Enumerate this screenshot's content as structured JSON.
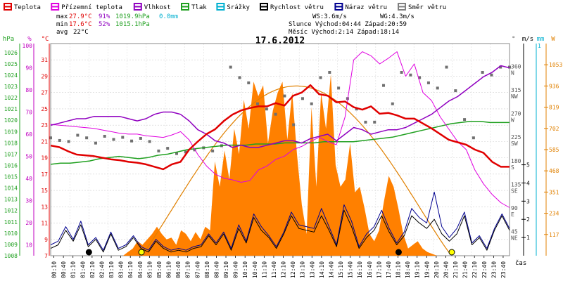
{
  "chart_data": {
    "type": "line",
    "title": "17.6.2012",
    "legend": [
      {
        "key": "temp",
        "label": "Teplota",
        "color": "#e00000"
      },
      {
        "key": "feels",
        "label": "Přízemní teplota",
        "color": "#e000e0"
      },
      {
        "key": "humidity",
        "label": "Vlhkost",
        "color": "#9000c0"
      },
      {
        "key": "pressure",
        "label": "Tlak",
        "color": "#20a020"
      },
      {
        "key": "rain",
        "label": "Srážky",
        "color": "#00b0d0"
      },
      {
        "key": "wind",
        "label": "Rychlost větru",
        "color": "#000000"
      },
      {
        "key": "gust",
        "label": "Náraz větru",
        "color": "#000090"
      },
      {
        "key": "dir",
        "label": "Směr větru",
        "color": "#808080"
      }
    ],
    "stats": {
      "max": {
        "label": "max",
        "temp": "27.9°C",
        "hum": "91%",
        "press": "1019.9hPa",
        "rain": "0.0mm"
      },
      "min": {
        "label": "min",
        "temp": "17.6°C",
        "hum": "52%",
        "press": "1015.1hPa"
      },
      "avg": {
        "label": "avg",
        "temp": "22°C"
      },
      "ws": "WS:3.6m/s",
      "wg": "WG:4.3m/s",
      "sun": "Slunce Východ:04:44  Západ:20:59",
      "moon": "Měsíc  Východ:2:14  Západ:18:14"
    },
    "axes": {
      "hpa": {
        "label": "hPa",
        "ticks": [
          "1026",
          "1025",
          "1024",
          "1023",
          "1022",
          "1021",
          "1020",
          "1019",
          "1018",
          "1017",
          "1016",
          "1015",
          "1014",
          "1013",
          "1012",
          "1011",
          "1010",
          "1009",
          "1008"
        ],
        "color": "#20a020"
      },
      "pct": {
        "label": "%",
        "ticks": [
          "100",
          "90",
          "80",
          "70",
          "60",
          "50",
          "40",
          "30",
          "20",
          "10"
        ],
        "color": "#c000c0"
      },
      "temp": {
        "label": "°C",
        "ticks": [
          "31",
          "29",
          "27",
          "25",
          "23",
          "21",
          "19",
          "17",
          "15",
          "13",
          "11",
          "9",
          "7"
        ],
        "range": [
          7,
          33
        ],
        "color": "#e00000"
      },
      "dir": {
        "label": "°",
        "ticks": [
          {
            "deg": "360",
            "dir": "N"
          },
          {
            "deg": "315",
            "dir": "NW"
          },
          {
            "deg": "270",
            "dir": "W"
          },
          {
            "deg": "225",
            "dir": "SW"
          },
          {
            "deg": "180",
            "dir": "S"
          },
          {
            "deg": "135",
            "dir": "SE"
          },
          {
            "deg": "90",
            "dir": "E"
          },
          {
            "deg": "45",
            "dir": "NE"
          }
        ],
        "color": "#505050"
      },
      "ms": {
        "label": "m/s",
        "ticks": [
          "5",
          "4",
          "3",
          "2",
          "1"
        ],
        "color": "#000000"
      },
      "mm": {
        "label": "mm",
        "ticks": [
          "1"
        ],
        "color": "#00b0d0"
      },
      "w": {
        "label": "W",
        "ticks": [
          "1053",
          "936",
          "819",
          "702",
          "585",
          "468",
          "351",
          "234",
          "117"
        ],
        "color": "#e08000"
      },
      "x_label": "čas",
      "x_ticks": [
        "00:10",
        "00:40",
        "01:10",
        "01:40",
        "02:10",
        "02:40",
        "03:10",
        "03:40",
        "04:10",
        "04:40",
        "05:10",
        "05:40",
        "06:10",
        "06:40",
        "07:10",
        "07:40",
        "08:10",
        "08:40",
        "09:10",
        "09:40",
        "10:10",
        "10:40",
        "11:10",
        "11:40",
        "12:10",
        "12:40",
        "13:10",
        "13:40",
        "14:10",
        "14:40",
        "15:10",
        "15:40",
        "16:10",
        "16:40",
        "17:10",
        "17:40",
        "18:10",
        "18:40",
        "19:10",
        "19:40",
        "20:10",
        "20:40",
        "21:10",
        "21:40",
        "22:10",
        "22:40",
        "23:10",
        "23:40"
      ]
    },
    "x_hours": [
      0,
      0.5,
      1,
      1.5,
      2,
      2.5,
      3,
      3.5,
      4,
      4.5,
      5,
      5.5,
      6,
      6.5,
      7,
      7.5,
      8,
      8.5,
      9,
      9.5,
      10,
      10.5,
      11,
      11.5,
      12,
      12.5,
      13,
      13.5,
      14,
      14.5,
      15,
      15.5,
      16,
      16.5,
      17,
      17.5,
      18,
      18.5,
      19,
      19.5,
      20,
      20.5,
      21,
      21.5,
      22,
      22.5,
      23,
      23.5,
      24
    ],
    "series": {
      "temp": [
        20.5,
        20.3,
        19.8,
        19.4,
        19.3,
        19.2,
        19.0,
        18.8,
        18.7,
        18.5,
        18.4,
        18.2,
        17.9,
        17.6,
        18.2,
        18.5,
        20.0,
        21.0,
        21.9,
        22.5,
        23.5,
        24.3,
        24.8,
        25.1,
        25.3,
        25.3,
        25.7,
        25.4,
        26.6,
        27.0,
        27.9,
        26.8,
        26.6,
        25.8,
        25.9,
        25.2,
        24.9,
        25.3,
        24.4,
        24.5,
        24.2,
        23.8,
        23.8,
        23.2,
        22.6,
        21.9,
        21.2,
        20.9,
        20.6,
        20.0,
        19.6,
        18.5,
        17.9,
        17.9
      ],
      "feels": [
        23.1,
        23.0,
        22.9,
        22.8,
        22.7,
        22.6,
        22.4,
        22.2,
        22.0,
        21.9,
        21.9,
        21.7,
        21.6,
        21.5,
        21.8,
        22.2,
        21.2,
        19.4,
        18.0,
        17.0,
        16.5,
        16.3,
        16.0,
        16.2,
        17.5,
        18.0,
        18.8,
        19.2,
        20.0,
        20.4,
        21.0,
        21.5,
        21.0,
        20.6,
        24.0,
        31.0,
        32.0,
        31.5,
        30.5,
        31.2,
        32.0,
        29.0,
        30.5,
        27.0,
        26.0,
        24.0,
        22.5,
        21.0,
        20.0,
        17.5,
        15.8,
        14.5,
        13.5,
        12.9
      ],
      "humidity": [
        64,
        65,
        66,
        67,
        67,
        68,
        68,
        68,
        68,
        67,
        66,
        67,
        69,
        70,
        70,
        69,
        66,
        62,
        60,
        57,
        56,
        54,
        55,
        54,
        54,
        55,
        56,
        57,
        57,
        56,
        58,
        59,
        60,
        57,
        60,
        63,
        62,
        60,
        61,
        62,
        62,
        63,
        65,
        67,
        69,
        72,
        75,
        77,
        80,
        83,
        86,
        88,
        91,
        90
      ],
      "pressure": [
        1016.1,
        1016.2,
        1016.2,
        1016.3,
        1016.4,
        1016.6,
        1016.7,
        1016.8,
        1016.7,
        1016.6,
        1016.7,
        1016.9,
        1017.0,
        1017.2,
        1017.4,
        1017.5,
        1017.6,
        1017.7,
        1017.8,
        1017.8,
        1017.8,
        1017.9,
        1017.9,
        1017.9,
        1018.0,
        1018.0,
        1018.0,
        1018.0,
        1018.1,
        1018.1,
        1018.1,
        1018.1,
        1018.2,
        1018.3,
        1018.4,
        1018.5,
        1018.7,
        1018.9,
        1019.1,
        1019.3,
        1019.5,
        1019.7,
        1019.8,
        1019.9,
        1019.9,
        1019.8,
        1019.8,
        1019.8
      ],
      "wind": [
        0.4,
        0.6,
        1.4,
        0.8,
        1.7,
        0.5,
        0.9,
        0.2,
        1.2,
        0.3,
        0.5,
        1.0,
        0.4,
        0.2,
        0.8,
        0.4,
        0.2,
        0.3,
        0.2,
        0.4,
        0.5,
        1.1,
        0.6,
        1.2,
        0.3,
        1.5,
        0.7,
        2.1,
        1.4,
        1.0,
        0.4,
        1.2,
        2.2,
        1.5,
        1.4,
        1.3,
        2.2,
        1.4,
        0.5,
        2.5,
        1.6,
        0.4,
        1.0,
        1.4,
        2.2,
        1.3,
        0.6,
        1.1,
        2.2,
        1.8,
        1.5,
        2.0,
        1.2,
        0.8,
        1.2,
        2.2,
        0.6,
        1.0,
        0.3,
        1.4,
        2.2,
        1.4
      ],
      "gust": [
        0.6,
        0.8,
        1.6,
        0.9,
        1.9,
        0.6,
        1.0,
        0.3,
        1.3,
        0.4,
        0.6,
        1.1,
        0.5,
        0.3,
        0.9,
        0.5,
        0.3,
        0.4,
        0.3,
        0.5,
        0.6,
        1.2,
        0.7,
        1.3,
        0.4,
        1.7,
        0.8,
        2.3,
        1.6,
        1.1,
        0.5,
        1.3,
        2.4,
        1.7,
        1.6,
        1.5,
        2.6,
        1.6,
        0.6,
        2.8,
        1.9,
        0.5,
        1.2,
        1.6,
        2.5,
        1.5,
        0.7,
        1.3,
        2.6,
        2.1,
        1.8,
        3.5,
        1.6,
        1.0,
        1.5,
        2.4,
        0.7,
        1.1,
        0.4,
        1.5,
        2.3,
        1.5
      ],
      "direction": [
        225,
        220,
        218,
        230,
        225,
        215,
        228,
        222,
        226,
        219,
        224,
        218,
        200,
        205,
        195,
        198,
        202,
        206,
        200,
        210,
        360,
        340,
        330,
        290,
        280,
        270,
        305,
        250,
        300,
        290,
        340,
        350,
        320,
        300,
        280,
        255,
        255,
        325,
        290,
        350,
        345,
        340,
        330,
        320,
        360,
        315,
        260,
        225,
        350,
        345,
        360,
        360
      ],
      "solar_w": [
        0,
        0,
        0,
        0,
        0,
        0,
        0,
        0,
        0,
        0,
        0,
        0,
        0,
        0,
        0,
        0,
        20,
        40,
        80,
        60,
        90,
        120,
        160,
        120,
        90,
        100,
        60,
        140,
        120,
        80,
        130,
        90,
        160,
        140,
        520,
        380,
        580,
        420,
        700,
        560,
        860,
        700,
        960,
        880,
        940,
        620,
        800,
        900,
        960,
        640,
        900,
        560,
        280,
        120,
        820,
        380,
        900,
        700,
        1000,
        500,
        380,
        420,
        620,
        350,
        380,
        260,
        120,
        80,
        140,
        300,
        440,
        380,
        260,
        120,
        40,
        60,
        80,
        40,
        20,
        10,
        0,
        0,
        0,
        0,
        0,
        0,
        0,
        0,
        0,
        0,
        0,
        0,
        0,
        0,
        0,
        0
      ],
      "solar_max_w": 936
    },
    "markers": [
      {
        "hour": 2.0,
        "color": "#000000"
      },
      {
        "hour": 4.75,
        "color": "#ffff00"
      },
      {
        "hour": 18.2,
        "color": "#000000"
      },
      {
        "hour": 20.98,
        "color": "#ffff00"
      }
    ]
  }
}
